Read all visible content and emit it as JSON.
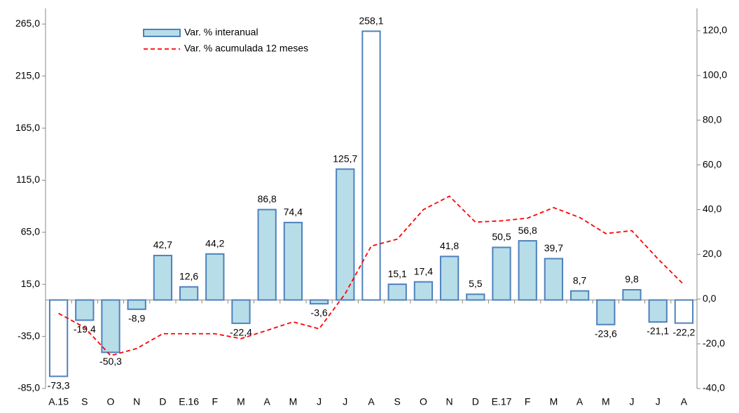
{
  "chart_data": {
    "type": "bar",
    "categories": [
      "A.15",
      "S",
      "O",
      "N",
      "D",
      "E.16",
      "F",
      "M",
      "A",
      "M",
      "J",
      "J",
      "A",
      "S",
      "O",
      "N",
      "D",
      "E.17",
      "F",
      "M",
      "A",
      "M",
      "J",
      "J",
      "A"
    ],
    "series": [
      {
        "name": "Var. % interanual",
        "type": "bar",
        "color": "#b7dde8",
        "edgecolor": "#4f81bd",
        "colors": [
          "#ffffff",
          "#b7dde8",
          "#b7dde8",
          "#b7dde8",
          "#b7dde8",
          "#b7dde8",
          "#b7dde8",
          "#b7dde8",
          "#b7dde8",
          "#b7dde8",
          "#b7dde8",
          "#b7dde8",
          "#ffffff",
          "#b7dde8",
          "#b7dde8",
          "#b7dde8",
          "#b7dde8",
          "#b7dde8",
          "#b7dde8",
          "#b7dde8",
          "#b7dde8",
          "#b7dde8",
          "#b7dde8",
          "#b7dde8",
          "#ffffff"
        ],
        "values": [
          -73.3,
          -19.4,
          -50.3,
          -8.9,
          42.7,
          12.6,
          44.2,
          -22.4,
          86.8,
          74.4,
          -3.6,
          125.7,
          258.1,
          15.1,
          17.4,
          41.8,
          5.5,
          50.5,
          56.8,
          39.7,
          8.7,
          -23.6,
          9.8,
          -21.1,
          -22.2
        ],
        "value_labels": [
          "-73,3",
          "-19,4",
          "-50,3",
          "-8,9",
          "42,7",
          "12,6",
          "44,2",
          "-22,4",
          "86,8",
          "74,4",
          "-3,6",
          "125,7",
          "258,1",
          "15,1",
          "17,4",
          "41,8",
          "5,5",
          "50,5",
          "56,8",
          "39,7",
          "8,7",
          "-23,6",
          "9,8",
          "-21,1",
          "-22,2"
        ]
      },
      {
        "name": "Var. % acumulada 12 meses",
        "type": "line",
        "color": "#ff0000",
        "axis": "y2",
        "values": [
          -6.4,
          -12.7,
          -25.3,
          -22.1,
          -15.5,
          -15.5,
          -15.5,
          -17.7,
          -14,
          -10.2,
          -13.3,
          2.4,
          23.7,
          26.8,
          40,
          46,
          34.4,
          35,
          36.2,
          40.9,
          36.5,
          29.3,
          30.6,
          18,
          6.4
        ]
      }
    ],
    "ylim": [
      -85,
      280
    ],
    "yticks": [
      {
        "value": -85,
        "label": "-85,0"
      },
      {
        "value": -35,
        "label": "-35,0"
      },
      {
        "value": 15,
        "label": "15,0"
      },
      {
        "value": 65,
        "label": "65,0"
      },
      {
        "value": 115,
        "label": "115,0"
      },
      {
        "value": 165,
        "label": "165,0"
      },
      {
        "value": 215,
        "label": "215,0"
      },
      {
        "value": 265,
        "label": "265,0"
      }
    ],
    "y2lim": [
      -40,
      130
    ],
    "y2ticks": [
      {
        "value": -40,
        "label": "-40,0"
      },
      {
        "value": -20,
        "label": "-20,0"
      },
      {
        "value": 0,
        "label": "0,0"
      },
      {
        "value": 20,
        "label": "20,0"
      },
      {
        "value": 40,
        "label": "40,0"
      },
      {
        "value": 60,
        "label": "60,0"
      },
      {
        "value": 80,
        "label": "80,0"
      },
      {
        "value": 100,
        "label": "100,0"
      },
      {
        "value": 120,
        "label": "120,0"
      }
    ],
    "legend": "upper left"
  }
}
